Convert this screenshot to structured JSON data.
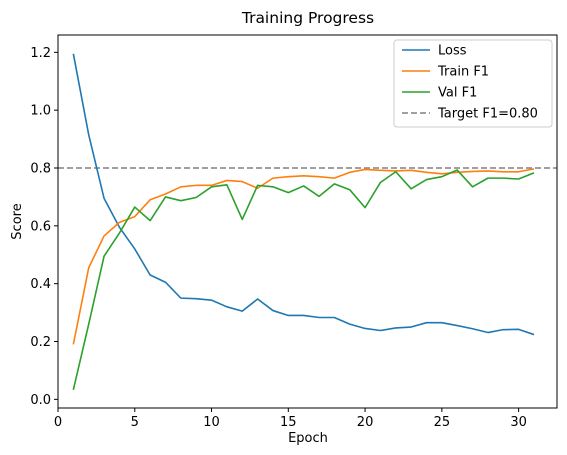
{
  "chart_data": {
    "type": "line",
    "title": "Training Progress",
    "xlabel": "Epoch",
    "ylabel": "Score",
    "xlim": [
      0,
      32.5
    ],
    "ylim": [
      -0.03,
      1.26
    ],
    "xticks": [
      0,
      5,
      10,
      15,
      20,
      25,
      30
    ],
    "yticks": [
      0.0,
      0.2,
      0.4,
      0.6,
      0.8,
      1.0,
      1.2
    ],
    "x": [
      1,
      2,
      3,
      4,
      5,
      6,
      7,
      8,
      9,
      10,
      11,
      12,
      13,
      14,
      15,
      16,
      17,
      18,
      19,
      20,
      21,
      22,
      23,
      24,
      25,
      26,
      27,
      28,
      29,
      30,
      31
    ],
    "series": [
      {
        "name": "Loss",
        "color": "#1f77b4",
        "values": [
          1.195,
          0.915,
          0.695,
          0.595,
          0.52,
          0.43,
          0.405,
          0.35,
          0.348,
          0.343,
          0.32,
          0.305,
          0.347,
          0.307,
          0.29,
          0.29,
          0.283,
          0.283,
          0.26,
          0.245,
          0.238,
          0.247,
          0.25,
          0.265,
          0.265,
          0.255,
          0.244,
          0.231,
          0.241,
          0.242,
          0.224
        ]
      },
      {
        "name": "Train F1",
        "color": "#ff7f0e",
        "values": [
          0.19,
          0.455,
          0.565,
          0.612,
          0.632,
          0.69,
          0.71,
          0.735,
          0.74,
          0.74,
          0.757,
          0.753,
          0.73,
          0.765,
          0.77,
          0.773,
          0.77,
          0.765,
          0.785,
          0.795,
          0.792,
          0.79,
          0.792,
          0.785,
          0.78,
          0.785,
          0.788,
          0.79,
          0.787,
          0.787,
          0.797
        ]
      },
      {
        "name": "Val F1",
        "color": "#2ca02c",
        "values": [
          0.033,
          0.26,
          0.495,
          0.575,
          0.665,
          0.618,
          0.7,
          0.687,
          0.698,
          0.735,
          0.742,
          0.622,
          0.74,
          0.735,
          0.715,
          0.738,
          0.702,
          0.745,
          0.725,
          0.663,
          0.75,
          0.787,
          0.728,
          0.76,
          0.77,
          0.793,
          0.735,
          0.765,
          0.765,
          0.762,
          0.783
        ]
      }
    ],
    "reference_line": {
      "name": "Target F1=0.80",
      "y": 0.8,
      "color": "#808080",
      "style": "dashed"
    },
    "legend": {
      "placement": "top-right",
      "entries": [
        "Loss",
        "Train F1",
        "Val F1",
        "Target F1=0.80"
      ]
    },
    "grid": false
  }
}
